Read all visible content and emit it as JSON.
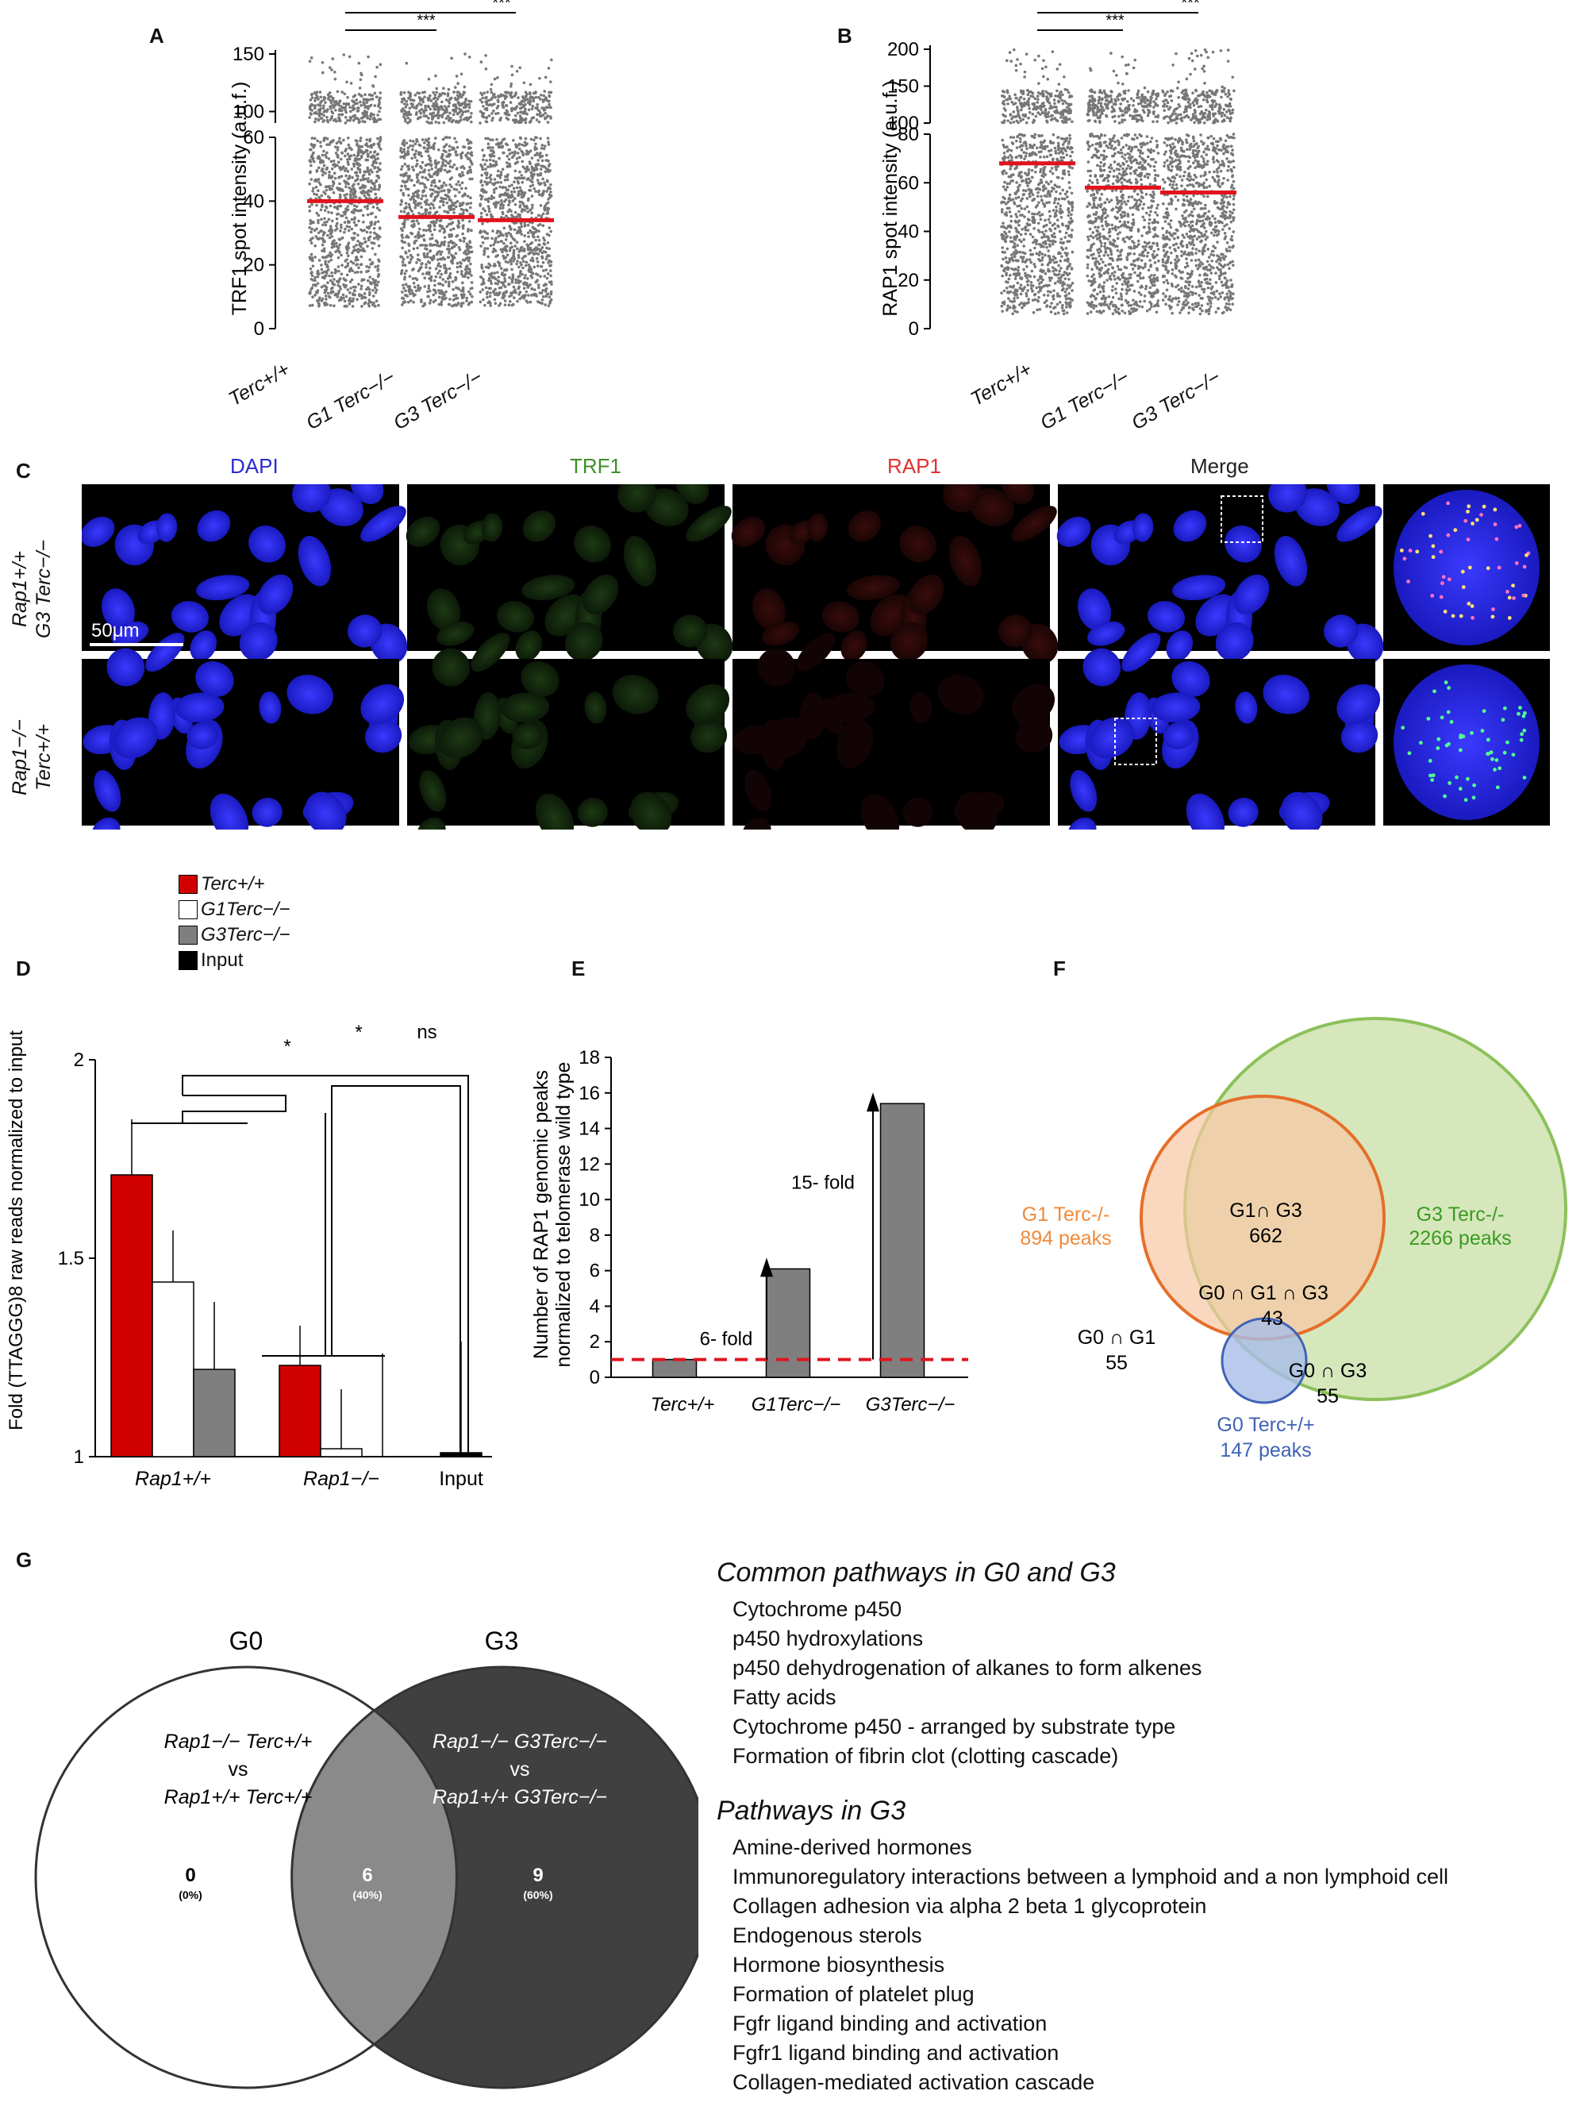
{
  "panels": {
    "a": {
      "letter": "A",
      "ylabel": "TRF1 spot intensity (a.u.f.)",
      "ticks_bottom": [
        "0",
        "20",
        "40",
        "60"
      ],
      "ticks_top": [
        "100",
        "150"
      ],
      "groups": [
        "Terc+/+",
        "G1 Terc−/−",
        "G3 Terc−/−"
      ],
      "sig": [
        "***",
        "***"
      ]
    },
    "b": {
      "letter": "B",
      "ylabel": "RAP1 spot intensity (a.u.f.)",
      "ticks_bottom": [
        "0",
        "20",
        "40",
        "60",
        "80"
      ],
      "ticks_top": [
        "100",
        "150",
        "200"
      ],
      "groups": [
        "Terc+/+",
        "G1 Terc−/−",
        "G3 Terc−/−"
      ],
      "sig": [
        "***",
        "***"
      ]
    },
    "c": {
      "letter": "C",
      "columns": [
        "DAPI",
        "TRF1",
        "RAP1",
        "Merge"
      ],
      "col_colors": [
        "#2b2bd0",
        "#3c8f2a",
        "#e03030",
        "#222222"
      ],
      "rows": [
        [
          "Rap1+/+",
          "G3 Terc−/−"
        ],
        [
          "Rap1−/−",
          "Terc+/+"
        ]
      ],
      "scale": "50μm"
    },
    "d": {
      "letter": "D",
      "legend": [
        "Terc+/+",
        "G1Terc−/−",
        "G3Terc−/−",
        "Input"
      ],
      "ylabel": "Fold (TTAGGG)8 raw reads normalized to input",
      "ticks": [
        "1",
        "1.5",
        "2"
      ],
      "groups": [
        "Rap1+/+",
        "Rap1−/−",
        "Input"
      ],
      "sig": [
        "*",
        "*",
        "ns"
      ]
    },
    "e": {
      "letter": "E",
      "ylabel_1": "Number of RAP1 genomic peaks",
      "ylabel_2": "normalized to telomerase wild type",
      "ticks": [
        "0",
        "2",
        "4",
        "6",
        "8",
        "10",
        "12",
        "14",
        "16",
        "18"
      ],
      "cats": [
        "Terc+/+",
        "G1Terc−/−",
        "G3Terc−/−"
      ],
      "ann": [
        "6- fold",
        "15- fold"
      ]
    },
    "f": {
      "letter": "F",
      "g1_a": "G1 Terc-/-",
      "g1_b": "894 peaks",
      "g3_a": "G3 Terc-/-",
      "g3_b": "2266 peaks",
      "g0_a": "G0 Terc+/+",
      "g0_b": "147 peaks",
      "g13": "G1∩ G3",
      "g13_n": "662",
      "g013": "G0 ∩ G1 ∩  G3",
      "g013_n": "43",
      "g01": "G0 ∩ G1",
      "g01_n": "55",
      "g03": "G0 ∩ G3",
      "g03_n": "55"
    },
    "g": {
      "letter": "G",
      "g0": "G0",
      "g3": "G3",
      "left_1": "Rap1−/− Terc+/+",
      "vs": "vs",
      "left_2": "Rap1+/+ Terc+/+",
      "right_1": "Rap1−/− G3Terc−/−",
      "right_2": "Rap1+/+ G3Terc−/−",
      "only_g0": "0",
      "only_g0_pct": "(0%)",
      "both": "6",
      "both_pct": "(40%)",
      "only_g3": "9",
      "only_g3_pct": "(60%)",
      "common_title": "Common pathways in G0 and G3",
      "common": [
        "Cytochrome p450",
        "p450 hydroxylations",
        "p450 dehydrogenation of alkanes to form alkenes",
        "Fatty acids",
        "Cytochrome p450 - arranged by substrate type",
        "Formation of fibrin clot (clotting cascade)"
      ],
      "g3_title": "Pathways in G3",
      "g3_list": [
        "Amine-derived hormones",
        "Immunoregulatory interactions between a lymphoid and a non lymphoid cell",
        "Collagen adhesion via alpha 2 beta 1 glycoprotein",
        "Endogenous sterols",
        "Hormone biosynthesis",
        "Formation of platelet plug",
        "Fgfr ligand binding and activation",
        "Fgfr1 ligand binding and activation",
        "Collagen-mediated activation cascade"
      ]
    }
  },
  "chart_data": [
    {
      "type": "scatter",
      "panel": "A",
      "ylabel": "TRF1 spot intensity (a.u.f.)",
      "categories": [
        "Terc+/+",
        "G1 Terc−/−",
        "G3 Terc−/−"
      ],
      "means": [
        40,
        35,
        34
      ],
      "ylim": [
        0,
        150
      ],
      "axis_break": [
        60,
        90
      ],
      "significance": [
        [
          "Terc+/+",
          "G1 Terc−/−",
          "***"
        ],
        [
          "Terc+/+",
          "G3 Terc−/−",
          "***"
        ]
      ]
    },
    {
      "type": "scatter",
      "panel": "B",
      "ylabel": "RAP1 spot intensity (a.u.f.)",
      "categories": [
        "Terc+/+",
        "G1 Terc−/−",
        "G3 Terc−/−"
      ],
      "means": [
        68,
        58,
        56
      ],
      "ylim": [
        0,
        200
      ],
      "axis_break": [
        80,
        100
      ],
      "significance": [
        [
          "Terc+/+",
          "G1 Terc−/−",
          "***"
        ],
        [
          "Terc+/+",
          "G3 Terc−/−",
          "***"
        ]
      ]
    },
    {
      "type": "bar",
      "panel": "D",
      "ylabel": "Fold (TTAGGG)8 raw reads normalized to input",
      "categories": [
        "Rap1+/+",
        "Rap1−/−",
        "Input"
      ],
      "series": [
        {
          "name": "Terc+/+",
          "color": "#d10000",
          "values": [
            1.71,
            1.23,
            null
          ],
          "errors": [
            0.14,
            0.1,
            null
          ]
        },
        {
          "name": "G1Terc−/−",
          "color": "#ffffff",
          "values": [
            1.44,
            1.02,
            null
          ],
          "errors": [
            0.13,
            0.15,
            null
          ]
        },
        {
          "name": "G3Terc−/−",
          "color": "#7f7f7f",
          "values": [
            1.22,
            1.0,
            null
          ],
          "errors": [
            0.17,
            0.26,
            null
          ]
        },
        {
          "name": "Input",
          "color": "#000000",
          "values": [
            null,
            null,
            1.01
          ],
          "errors": [
            null,
            null,
            0.28
          ]
        }
      ],
      "ylim": [
        1,
        2
      ],
      "significance": [
        "*",
        "*",
        "ns"
      ]
    },
    {
      "type": "bar",
      "panel": "E",
      "ylabel": "Number of RAP1 genomic peaks normalized to telomerase wild type",
      "categories": [
        "Terc+/+",
        "G1Terc−/−",
        "G3Terc−/−"
      ],
      "values": [
        1,
        6.1,
        15.4
      ],
      "ylim": [
        0,
        18
      ],
      "reference_line": 1,
      "annotations": [
        "6- fold",
        "15- fold"
      ]
    }
  ]
}
